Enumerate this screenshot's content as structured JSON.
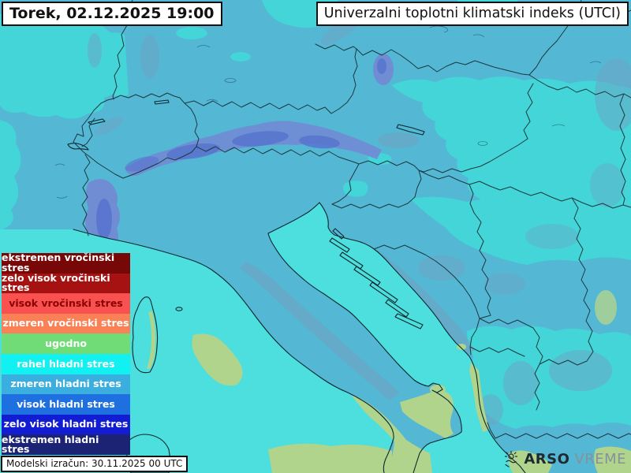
{
  "header": {
    "datetime": "Torek, 02.12.2025 19:00",
    "title": "Univerzalni toplotni klimatski indeks (UTCI)"
  },
  "legend": {
    "items": [
      {
        "label": "ekstremen vročinski stres",
        "color": "#780808",
        "text_color": "#ffffff"
      },
      {
        "label": "zelo visok vročinski stres",
        "color": "#a61111",
        "text_color": "#ffffff"
      },
      {
        "label": "visok vročinski stres",
        "color": "#f85150",
        "text_color": "#8b0000"
      },
      {
        "label": "zmeren vročinski stres",
        "color": "#fa8156",
        "text_color": "#ffffff"
      },
      {
        "label": "ugodno",
        "color": "#70dc78",
        "text_color": "#ffffff"
      },
      {
        "label": "rahel hladni stres",
        "color": "#12f1f1",
        "text_color": "#ffffff"
      },
      {
        "label": "zmeren hladni stres",
        "color": "#3aaede",
        "text_color": "#ffffff"
      },
      {
        "label": "visok hladni stres",
        "color": "#1e70e1",
        "text_color": "#ffffff"
      },
      {
        "label": "zelo visok hladni stres",
        "color": "#111cd3",
        "text_color": "#ffffff"
      },
      {
        "label": "ekstremen hladni stres",
        "color": "#1c2375",
        "text_color": "#ffffff"
      }
    ]
  },
  "footer": {
    "model_run": "Modelski izračun: 30.11.2025 00 UTC"
  },
  "logo": {
    "primary": "ARSO",
    "secondary": "VREME"
  },
  "map_colors": {
    "base_land": "#5cc8e8",
    "sea": "#53f4f1",
    "cool_patch": "#49e9ec",
    "ridge_blue": "#7b9ae8",
    "ridge_blue_dark": "#5f7de0",
    "ridge_soft": "#79b2d6",
    "green": "#c1e79a",
    "border": "#1d3f45",
    "coast": "#0c2b33"
  }
}
